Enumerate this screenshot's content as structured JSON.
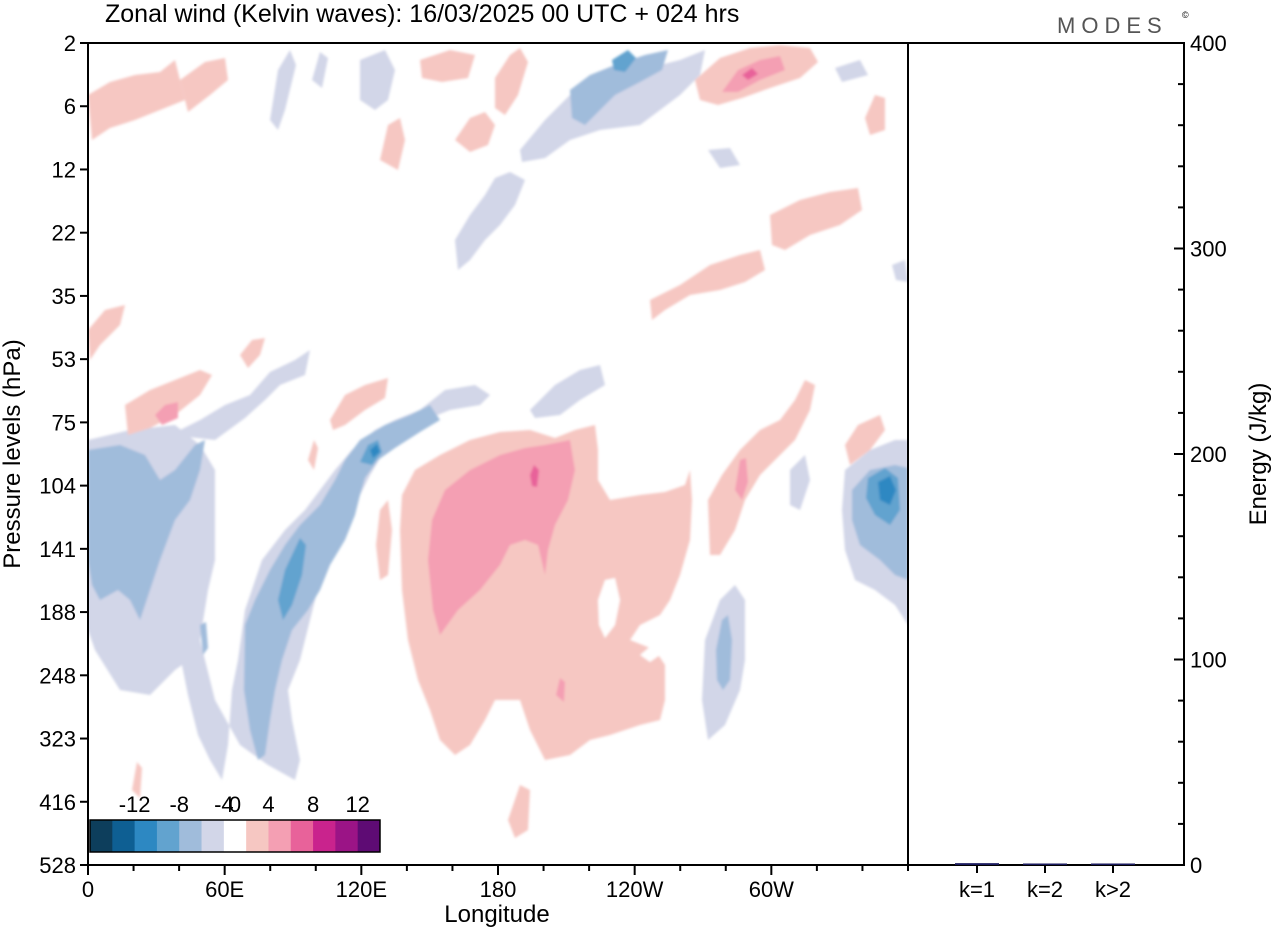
{
  "chart_data": [
    {
      "type": "heatmap",
      "title": "Zonal wind (Kelvin waves):  16/03/2025  00 UTC  + 024 hrs",
      "brand": "MODES",
      "brand_mark": "©",
      "xlabel": "Longitude",
      "ylabel": "Pressure levels (hPa)",
      "x_ticks": [
        "0",
        "60E",
        "120E",
        "180",
        "120W",
        "60W"
      ],
      "x_tick_values": [
        0,
        60,
        120,
        180,
        240,
        300
      ],
      "xlim": [
        0,
        360
      ],
      "y_ticks": [
        "2",
        "6",
        "12",
        "22",
        "35",
        "53",
        "75",
        "104",
        "141",
        "188",
        "248",
        "323",
        "416",
        "528"
      ],
      "y_scale": "nonlinear (model levels)",
      "y_direction": "pressure increases downward",
      "colorbar": {
        "labels": [
          "-12",
          "-8",
          "-4",
          "0",
          "4",
          "8",
          "12"
        ],
        "bin_edges": [
          -14,
          -12,
          -10,
          -8,
          -6,
          -4,
          -2,
          2,
          4,
          6,
          8,
          10,
          12,
          14
        ],
        "colors": [
          "#0d3e5c",
          "#0e5f93",
          "#2d88c2",
          "#62a3cf",
          "#a0bcdb",
          "#d2d6e8",
          "#ffffff",
          "#f6c7c2",
          "#f49fb3",
          "#e8629a",
          "#c9238d",
          "#9b1486",
          "#5e0b74"
        ]
      },
      "features": [
        {
          "lon": [
            0,
            45
          ],
          "level": "104–248",
          "sign": "negative",
          "peak": -6
        },
        {
          "lon": [
            55,
            95
          ],
          "level": "104–416",
          "sign": "negative",
          "peak": -8
        },
        {
          "lon": [
            95,
            120
          ],
          "level": "75–141",
          "sign": "negative",
          "peak": -8
        },
        {
          "lon": [
            150,
            215
          ],
          "level": "75–330",
          "sign": "positive",
          "peak": 8
        },
        {
          "lon": [
            170,
            260
          ],
          "level": "104–323",
          "sign": "positive",
          "peak": 4
        },
        {
          "lon": [
            275,
            300
          ],
          "level": "75–188",
          "sign": "positive",
          "peak": 6
        },
        {
          "lon": [
            335,
            360
          ],
          "level": "75–188",
          "sign": "negative",
          "peak": -10
        },
        {
          "lon": [
            270,
            330
          ],
          "level": "2–6",
          "sign": "positive",
          "peak": 6
        },
        {
          "lon": [
            210,
            270
          ],
          "level": "2–12",
          "sign": "negative",
          "peak": -6
        }
      ]
    },
    {
      "type": "bar",
      "categories": [
        "k=1",
        "k=2",
        "k>2"
      ],
      "values": [
        0.9,
        0.3,
        0.4
      ],
      "ylabel": "Energy (J/kg)",
      "ylim": [
        0,
        400
      ],
      "y_ticks": [
        "0",
        "100",
        "200",
        "300",
        "400"
      ],
      "y_tick_values": [
        0,
        100,
        200,
        300,
        400
      ],
      "bar_color": "#1a1a5e"
    }
  ]
}
